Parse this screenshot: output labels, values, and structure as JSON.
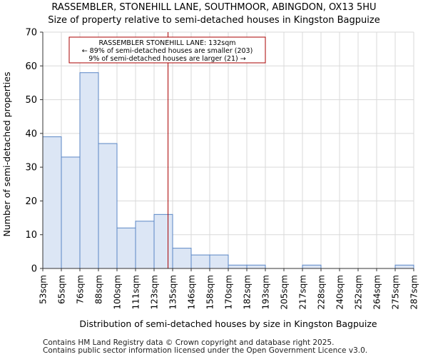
{
  "chart_data": {
    "type": "bar",
    "title": "RASSEMBLER, STONEHILL LANE, SOUTHMOOR, ABINGDON, OX13 5HU",
    "subtitle": "Size of property relative to semi-detached houses in Kingston Bagpuize",
    "xlabel": "Distribution of semi-detached houses by size in Kingston Bagpuize",
    "ylabel": "Number of semi-detached properties",
    "x_tick_labels": [
      "53sqm",
      "65sqm",
      "76sqm",
      "88sqm",
      "100sqm",
      "111sqm",
      "123sqm",
      "135sqm",
      "146sqm",
      "158sqm",
      "170sqm",
      "182sqm",
      "193sqm",
      "205sqm",
      "217sqm",
      "228sqm",
      "240sqm",
      "252sqm",
      "264sqm",
      "275sqm",
      "287sqm"
    ],
    "values": [
      39,
      33,
      58,
      37,
      12,
      14,
      16,
      6,
      4,
      4,
      1,
      1,
      0,
      0,
      1,
      0,
      0,
      0,
      0,
      1
    ],
    "ylim": [
      0,
      70
    ],
    "yticks": [
      0,
      10,
      20,
      30,
      40,
      50,
      60,
      70
    ],
    "bar_color": "#dce6f5",
    "bar_edge_color": "#5a86c5",
    "marker": {
      "value": 132,
      "color": "#aa0000",
      "annotation": [
        "RASSEMBLER STONEHILL LANE: 132sqm",
        "← 89% of semi-detached houses are smaller (203)",
        "9% of semi-detached houses are larger (21) →"
      ]
    },
    "grid": true
  },
  "footer": {
    "line1": "Contains HM Land Registry data © Crown copyright and database right 2025.",
    "line2": "Contains public sector information licensed under the Open Government Licence v3.0."
  }
}
